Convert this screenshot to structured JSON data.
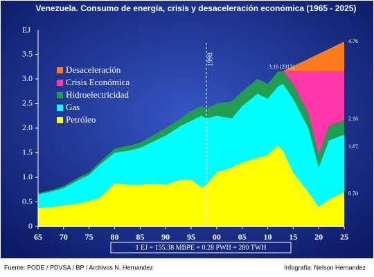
{
  "chart_data": {
    "type": "stacked_area",
    "title": "Venezuela. Consumo de energía, crisis y desaceleración económica (1965 - 2025)",
    "y_label": "EJ",
    "x": [
      1965,
      1968,
      1970,
      1973,
      1975,
      1977,
      1980,
      1983,
      1985,
      1988,
      1990,
      1993,
      1995,
      1997,
      1998,
      2000,
      2003,
      2005,
      2008,
      2010,
      2012,
      2013,
      2015,
      2018,
      2020,
      2022,
      2025
    ],
    "series": [
      {
        "name": "Petróleo",
        "color": "#ffff00",
        "values": [
          0.38,
          0.4,
          0.43,
          0.47,
          0.52,
          0.58,
          0.88,
          0.85,
          0.85,
          0.87,
          0.85,
          0.95,
          0.95,
          0.8,
          0.85,
          1.1,
          1.2,
          1.3,
          1.4,
          1.45,
          1.65,
          1.55,
          1.1,
          0.7,
          0.4,
          0.55,
          0.7
        ]
      },
      {
        "name": "Gas",
        "color": "#00ffff",
        "values": [
          0.27,
          0.32,
          0.35,
          0.48,
          0.53,
          0.67,
          0.62,
          0.7,
          0.75,
          0.88,
          1.0,
          1.1,
          1.2,
          1.45,
          1.35,
          1.15,
          1.0,
          1.15,
          1.3,
          1.15,
          1.2,
          1.35,
          1.5,
          1.3,
          0.8,
          1.2,
          1.17
        ]
      },
      {
        "name": "Hidroelectricidad",
        "color": "#1e9e4e",
        "values": [
          0.03,
          0.03,
          0.04,
          0.05,
          0.05,
          0.05,
          0.08,
          0.1,
          0.1,
          0.13,
          0.15,
          0.15,
          0.2,
          0.2,
          0.2,
          0.25,
          0.35,
          0.3,
          0.3,
          0.3,
          0.3,
          0.26,
          0.3,
          0.3,
          0.25,
          0.3,
          0.29
        ]
      },
      {
        "name": "Crisis Económica",
        "color": "#ff38a8",
        "values": [
          null,
          null,
          null,
          null,
          null,
          null,
          null,
          null,
          null,
          null,
          null,
          null,
          null,
          null,
          null,
          null,
          null,
          null,
          null,
          null,
          null,
          0,
          0.26,
          0.86,
          1.71,
          1.11,
          1.0
        ]
      },
      {
        "name": "Desaceleración",
        "color": "#ff7a1a",
        "values": [
          null,
          null,
          null,
          null,
          null,
          null,
          null,
          null,
          null,
          null,
          null,
          null,
          null,
          null,
          null,
          null,
          null,
          null,
          null,
          null,
          null,
          0,
          0.1,
          0.25,
          0.35,
          0.45,
          0.6
        ]
      }
    ],
    "xlim": [
      1965,
      2025
    ],
    "xticks": [
      {
        "value": 1965,
        "label": "65"
      },
      {
        "value": 1970,
        "label": "70"
      },
      {
        "value": 1975,
        "label": "75"
      },
      {
        "value": 1980,
        "label": "80"
      },
      {
        "value": 1985,
        "label": "85"
      },
      {
        "value": 1990,
        "label": "90"
      },
      {
        "value": 1995,
        "label": "95"
      },
      {
        "value": 2000,
        "label": "00"
      },
      {
        "value": 2005,
        "label": "05"
      },
      {
        "value": 2010,
        "label": "10"
      },
      {
        "value": 2015,
        "label": "15"
      },
      {
        "value": 2020,
        "label": "20"
      },
      {
        "value": 2025,
        "label": "25"
      }
    ],
    "ylim": [
      0,
      4
    ],
    "yticks": [
      0,
      0.5,
      {
        "value": 1,
        "label": "1.0"
      },
      1.5,
      {
        "value": 2,
        "label": "2.0"
      },
      2.5,
      {
        "value": 3,
        "label": "3.0"
      },
      3.5
    ],
    "marker_line": {
      "value": 1998,
      "label": "1998"
    },
    "annotations": [
      "3.16 (2013)",
      "4.76",
      "2.16",
      "1.87",
      "0.70"
    ],
    "conversion_note": "1 EJ = 155.38 MBPE = 0.28 PWH = 280 TWH",
    "source": "Fuente: PODE  / PDVSA  / BP / Archivos N. Hernandez",
    "credit": "Infografía: Nelson Hernandez"
  }
}
